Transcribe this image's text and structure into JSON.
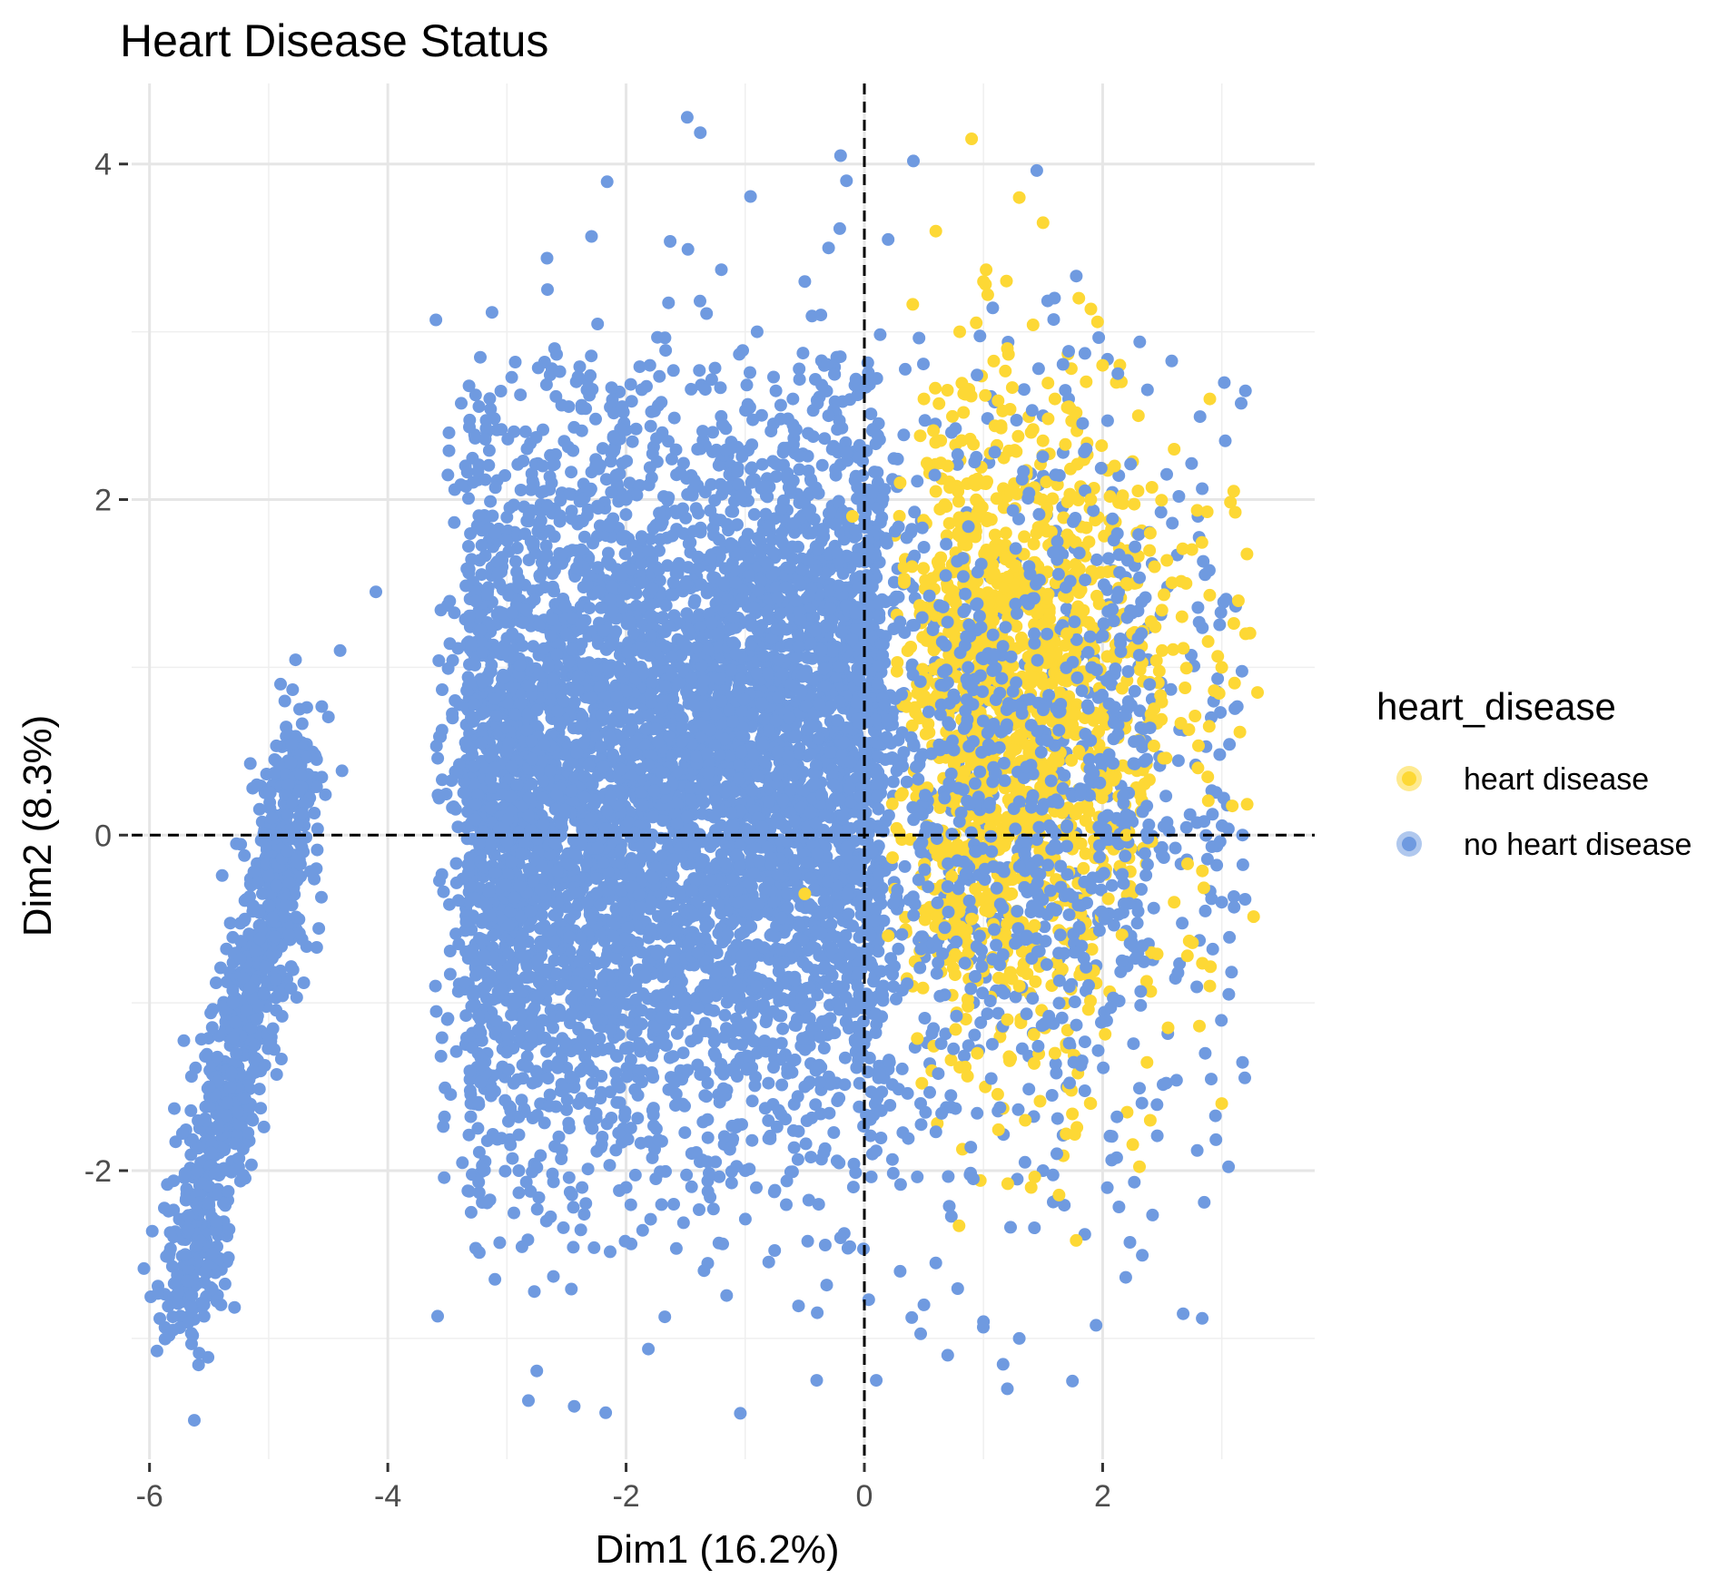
{
  "chart_data": {
    "type": "scatter",
    "title": "Heart Disease Status",
    "xlabel": "Dim1 (16.2%)",
    "ylabel": "Dim2 (8.3%)",
    "xlim": [
      -6.15,
      3.78
    ],
    "ylim": [
      -3.72,
      4.48
    ],
    "x_ticks": [
      -6,
      -4,
      -2,
      0,
      2
    ],
    "x_tick_labels": [
      "-6",
      "-4",
      "-2",
      "0",
      "2"
    ],
    "y_ticks": [
      -2,
      0,
      2,
      4
    ],
    "y_tick_labels": [
      "-2",
      "0",
      "2",
      "4"
    ],
    "grid": true,
    "reference_lines": {
      "x": 0,
      "y": 0,
      "style": "dashed"
    },
    "legend": {
      "title": "heart_disease",
      "placement": "right",
      "entries": [
        {
          "label": "heart disease",
          "color": "#FDD835"
        },
        {
          "label": "no heart disease",
          "color": "#6F9AE0"
        }
      ]
    },
    "series": [
      {
        "name": "no heart disease",
        "color": "#6F9AE0",
        "x": [
          -1.5,
          -1.2,
          -0.8,
          -2.0,
          -2.5,
          -3.0,
          -3.2,
          -2.8,
          -2.2,
          -1.0,
          -0.5,
          -0.3,
          -1.8,
          -2.6,
          -3.1,
          -0.9,
          -1.4,
          -0.6,
          -2.4,
          -1.6,
          -0.2,
          0.3,
          0.5,
          0.7,
          1.0,
          1.3,
          1.5,
          1.7,
          -5.5,
          -5.3,
          -5.2,
          -5.0,
          -4.8,
          -5.6,
          -5.7,
          -5.4,
          -4.6,
          -5.1,
          -4.9,
          -5.8,
          -4.1,
          -4.4,
          -0.3,
          -0.2,
          -1.2,
          0.2,
          1.5,
          2.2,
          2.8,
          3.0,
          -3.5,
          -3.6,
          -2.9,
          -0.5,
          0.4,
          0.8,
          1.1,
          1.2,
          -0.15,
          -1.4,
          -0.9,
          -2.0,
          -2.7,
          0.1,
          0.6,
          -1.1,
          -3.3,
          -0.4
        ],
        "y": [
          1.5,
          0.8,
          0.2,
          2.0,
          1.2,
          0.5,
          -0.5,
          -1.2,
          -1.8,
          -2.0,
          -1.5,
          2.5,
          2.8,
          2.9,
          1.8,
          3.0,
          2.3,
          2.6,
          -1.6,
          -2.2,
          -2.4,
          -2.6,
          -2.8,
          -3.1,
          -2.9,
          -3.0,
          -2.0,
          -1.5,
          -1.5,
          -1.0,
          -0.5,
          0.0,
          0.2,
          -2.0,
          -2.5,
          -2.8,
          -0.2,
          0.3,
          0.9,
          -2.95,
          1.45,
          1.1,
          3.5,
          4.05,
          3.37,
          3.55,
          2.5,
          1.5,
          1.9,
          -0.4,
          -1.1,
          -0.9,
          -2.0,
          3.3,
          1.0,
          0.3,
          -0.5,
          -3.3,
          3.9,
          -0.7,
          -1.3,
          -2.1,
          2.2,
          -3.25,
          -2.55,
          1.3,
          0.7,
          -3.25
        ]
      },
      {
        "name": "heart disease",
        "color": "#FDD835",
        "x": [
          0.9,
          1.3,
          1.5,
          1.8,
          2.0,
          2.3,
          2.6,
          2.9,
          3.1,
          3.2,
          3.3,
          1.0,
          1.2,
          1.6,
          2.1,
          2.4,
          2.7,
          3.0,
          0.6,
          0.8,
          1.4,
          1.9,
          2.2,
          2.5,
          0.5,
          0.7,
          1.1,
          1.7,
          2.0,
          2.8,
          0.3,
          0.4,
          1.5,
          1.8,
          2.2,
          3.0,
          0.9,
          1.3,
          1.6,
          2.4,
          -0.5,
          -0.1,
          0.2,
          1.2,
          1.4,
          1.9,
          2.6,
          2.9
        ],
        "y": [
          4.15,
          3.8,
          3.65,
          3.2,
          2.8,
          2.5,
          2.3,
          2.6,
          2.05,
          1.2,
          0.85,
          3.3,
          2.9,
          2.6,
          2.2,
          1.8,
          1.5,
          1.0,
          3.6,
          3.0,
          2.4,
          2.0,
          1.5,
          1.1,
          2.6,
          2.2,
          1.7,
          1.2,
          0.7,
          0.4,
          2.1,
          1.6,
          0.9,
          0.5,
          0.0,
          -1.6,
          -0.5,
          -0.9,
          -1.3,
          -1.7,
          -0.35,
          1.9,
          -0.6,
          -1.1,
          -2.1,
          -1.6,
          -0.4,
          -0.9
        ]
      }
    ]
  }
}
